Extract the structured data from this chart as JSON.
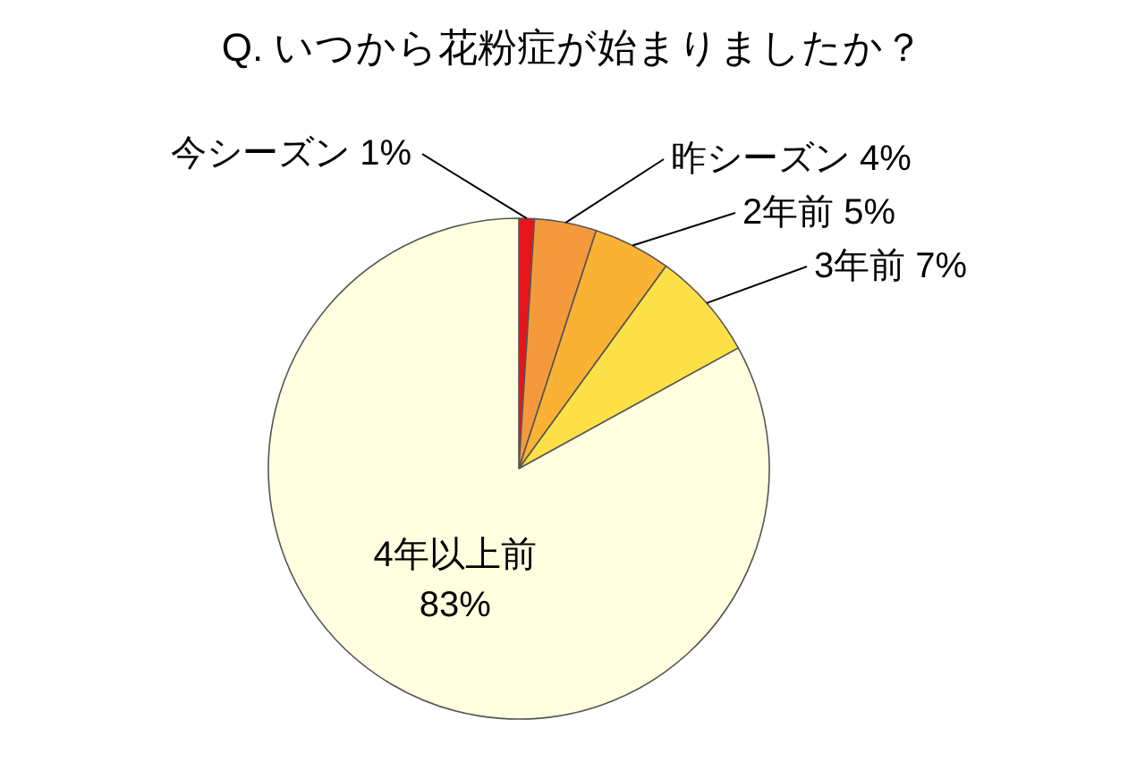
{
  "chart_data": {
    "type": "pie",
    "title": "Q. いつから花粉症が始まりましたか？",
    "categories": [
      "今シーズン",
      "昨シーズン",
      "2年前",
      "3年前",
      "4年以上前"
    ],
    "values": [
      1,
      4,
      5,
      7,
      83
    ],
    "value_labels": [
      "1%",
      "4%",
      "5%",
      "7%",
      "83%"
    ],
    "colors": [
      "#e8141b",
      "#f59a3c",
      "#f9b233",
      "#fde047",
      "#ffffe0"
    ]
  }
}
